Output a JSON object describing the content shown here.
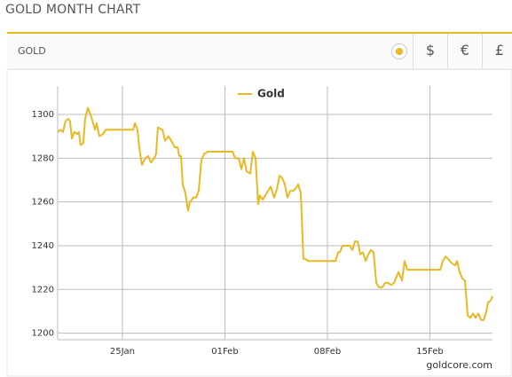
{
  "page_title": "GOLD MONTH CHART",
  "tab_label": "GOLD",
  "currencies": [
    "$",
    "€",
    "£"
  ],
  "credit": "goldcore.com",
  "chart_data": {
    "type": "line",
    "x": [
      20.58,
      20.76,
      20.94,
      21.12,
      21.3,
      21.42,
      21.55,
      21.73,
      21.91,
      22.03,
      22.15,
      22.33,
      22.45,
      22.64,
      22.82,
      23.0,
      23.12,
      23.24,
      23.42,
      23.67,
      23.85,
      25.73,
      25.85,
      26.03,
      26.15,
      26.33,
      26.58,
      26.76,
      26.94,
      27.18,
      27.3,
      27.42,
      27.73,
      27.91,
      28.15,
      28.33,
      28.58,
      28.76,
      28.88,
      29.0,
      29.12,
      29.3,
      29.48,
      29.61,
      29.85,
      30.03,
      30.21,
      30.39,
      30.58,
      30.82,
      32.52,
      32.7,
      32.94,
      33.12,
      33.3,
      33.48,
      33.73,
      33.91,
      34.09,
      34.27,
      34.39,
      34.58,
      34.76,
      34.94,
      35.12,
      35.36,
      35.55,
      35.73,
      35.91,
      36.09,
      36.27,
      36.45,
      36.64,
      36.82,
      37.0,
      37.18,
      37.36,
      37.48,
      37.67,
      39.55,
      39.73,
      39.85,
      40.03,
      40.27,
      40.52,
      40.7,
      40.88,
      41.06,
      41.24,
      41.42,
      41.61,
      41.79,
      41.97,
      42.15,
      42.33,
      42.52,
      42.76,
      42.94,
      43.12,
      43.36,
      43.55,
      43.85,
      44.09,
      44.27,
      44.45,
      46.7,
      46.88,
      47.06,
      47.24,
      47.48,
      47.73,
      47.85,
      48.03,
      48.21,
      48.39,
      48.58,
      48.76,
      48.94,
      49.12,
      49.3,
      49.48,
      49.67,
      49.85,
      49.97,
      50.15,
      50.27
    ],
    "series": [
      {
        "name": "Gold",
        "color": "#e8b923",
        "values": [
          1292,
          1293,
          1292,
          1297,
          1298,
          1297,
          1289,
          1292,
          1291,
          1292,
          1286,
          1287,
          1298,
          1303,
          1300,
          1296,
          1293,
          1296,
          1290,
          1291,
          1293,
          1293,
          1296,
          1293,
          1285,
          1277,
          1280,
          1281,
          1278,
          1280,
          1282,
          1294,
          1293,
          1288,
          1290,
          1288,
          1285,
          1285,
          1281,
          1281,
          1268,
          1264,
          1256,
          1260,
          1262,
          1262,
          1265,
          1279,
          1282,
          1283,
          1283,
          1280,
          1280,
          1275,
          1280,
          1274,
          1273,
          1283,
          1280,
          1259,
          1263,
          1261,
          1263,
          1265,
          1267,
          1262,
          1266,
          1272,
          1271,
          1268,
          1262,
          1265,
          1265,
          1266,
          1268,
          1264,
          1234,
          1234,
          1233,
          1233,
          1237,
          1237,
          1240,
          1240,
          1240,
          1238,
          1242,
          1242,
          1236,
          1237,
          1233,
          1236,
          1238,
          1237,
          1223,
          1221,
          1221,
          1223,
          1223,
          1222,
          1223,
          1228,
          1224,
          1233,
          1229,
          1229,
          1233,
          1235,
          1234,
          1232,
          1231,
          1233,
          1228,
          1225,
          1224,
          1208,
          1207,
          1209,
          1207,
          1209,
          1206,
          1206,
          1210,
          1214,
          1215,
          1217
        ]
      }
    ],
    "xlim": [
      20.58,
      50.27
    ],
    "xticks": [
      {
        "value": 25,
        "label": "25Jan"
      },
      {
        "value": 32,
        "label": "01Feb"
      },
      {
        "value": 39,
        "label": "08Feb"
      },
      {
        "value": 46,
        "label": "15Feb"
      }
    ],
    "ylim": [
      1197,
      1313
    ],
    "yticks": [
      1200,
      1220,
      1240,
      1260,
      1280,
      1300
    ],
    "grid": true,
    "legend": "top"
  }
}
